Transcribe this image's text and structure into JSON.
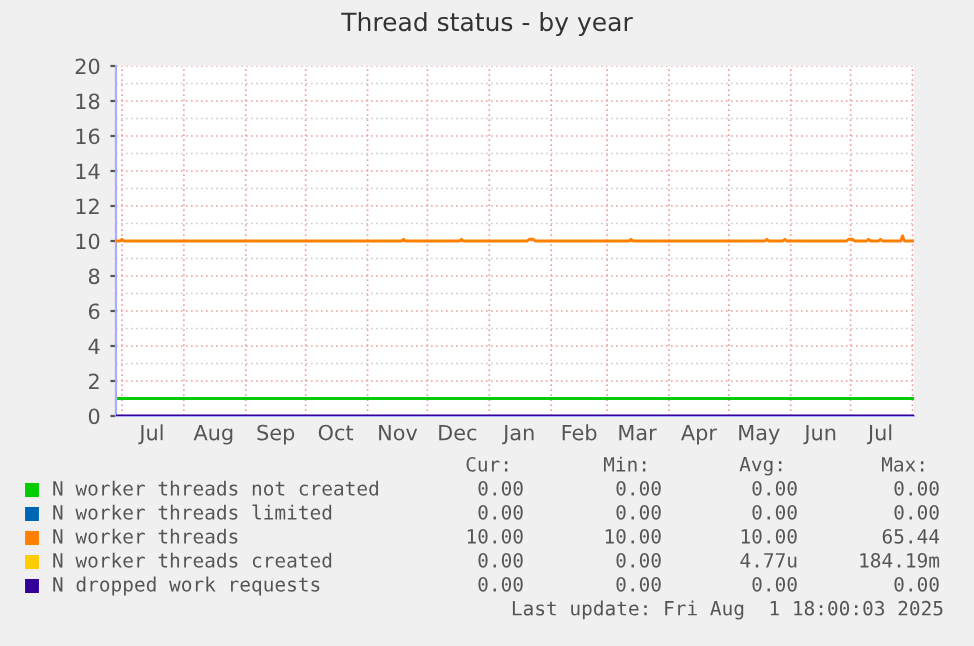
{
  "chart_data": {
    "type": "line",
    "title": "Thread status - by year",
    "xlim": [
      "2024-06-28",
      "2025-08-01T18:00"
    ],
    "xticks": [
      {
        "value": "2024-07-01",
        "label": null
      },
      {
        "value": "2024-07-16",
        "label": "Jul"
      },
      {
        "value": "2024-08-01",
        "label": null
      },
      {
        "value": "2024-08-16",
        "label": "Aug"
      },
      {
        "value": "2024-09-01",
        "label": null
      },
      {
        "value": "2024-09-16",
        "label": "Sep"
      },
      {
        "value": "2024-10-01",
        "label": null
      },
      {
        "value": "2024-10-16",
        "label": "Oct"
      },
      {
        "value": "2024-11-01",
        "label": null
      },
      {
        "value": "2024-11-16",
        "label": "Nov"
      },
      {
        "value": "2024-12-01",
        "label": null
      },
      {
        "value": "2024-12-16",
        "label": "Dec"
      },
      {
        "value": "2025-01-01",
        "label": null
      },
      {
        "value": "2025-01-16",
        "label": "Jan"
      },
      {
        "value": "2025-02-01",
        "label": null
      },
      {
        "value": "2025-02-15",
        "label": "Feb"
      },
      {
        "value": "2025-03-01",
        "label": null
      },
      {
        "value": "2025-03-16",
        "label": "Mar"
      },
      {
        "value": "2025-04-01",
        "label": null
      },
      {
        "value": "2025-04-16",
        "label": "Apr"
      },
      {
        "value": "2025-05-01",
        "label": null
      },
      {
        "value": "2025-05-16",
        "label": "May"
      },
      {
        "value": "2025-06-01",
        "label": null
      },
      {
        "value": "2025-06-16",
        "label": "Jun"
      },
      {
        "value": "2025-07-01",
        "label": null
      },
      {
        "value": "2025-07-16",
        "label": "Jul"
      },
      {
        "value": "2025-08-01",
        "label": null
      }
    ],
    "ylim": [
      0,
      20
    ],
    "yticks": [
      0,
      2,
      4,
      6,
      8,
      10,
      12,
      14,
      16,
      18,
      20
    ],
    "grid": true,
    "legend": "bottom",
    "series": [
      {
        "name": "N worker threads not created",
        "color": "#00cc00"
      },
      {
        "name": "N worker threads limited",
        "color": "#0066b3"
      },
      {
        "name": "N worker threads",
        "color": "#ff8000",
        "x": [
          "2024-06-28",
          "2024-06-30",
          "2024-07-01",
          "2024-07-02",
          "2024-11-18",
          "2024-11-19",
          "2024-11-20",
          "2024-12-17",
          "2024-12-18",
          "2024-12-19",
          "2025-01-20",
          "2025-01-21",
          "2025-01-23",
          "2025-01-24",
          "2025-03-12",
          "2025-03-13",
          "2025-03-14",
          "2025-05-19",
          "2025-05-20",
          "2025-05-21",
          "2025-05-28",
          "2025-05-29",
          "2025-05-30",
          "2025-06-29",
          "2025-06-30",
          "2025-07-02",
          "2025-07-03",
          "2025-07-09",
          "2025-07-10",
          "2025-07-11",
          "2025-07-15",
          "2025-07-16",
          "2025-07-17",
          "2025-07-26",
          "2025-07-27",
          "2025-07-28",
          "2025-08-01T18:00"
        ],
        "values": [
          10,
          10,
          10.1,
          10,
          10,
          10.1,
          10,
          10,
          10.1,
          10,
          10,
          10.1,
          10.1,
          10,
          10,
          10.1,
          10,
          10,
          10.1,
          10,
          10,
          10.1,
          10,
          10,
          10.1,
          10.1,
          10,
          10,
          10.1,
          10,
          10,
          10.1,
          10,
          10,
          10.3,
          10,
          10
        ]
      },
      {
        "name": "N worker threads created",
        "color": "#ffcc00"
      },
      {
        "name": "N dropped work requests",
        "color": "#330099",
        "x": [
          "2024-06-28",
          "2025-08-01T18:00"
        ],
        "values": [
          0,
          0
        ]
      }
    ],
    "ref_lines": [
      {
        "axis": "y",
        "value": 1,
        "color": "#00cc00"
      }
    ],
    "annotations": [
      "Cur:",
      "Min:",
      "Avg:",
      "Max:",
      "0.00",
      "0.00",
      "0.00",
      "0.00",
      "0.00",
      "0.00",
      "0.00",
      "0.00",
      "10.00",
      "10.00",
      "10.00",
      "65.44",
      "0.00",
      "0.00",
      "4.77u",
      "184.19m",
      "0.00",
      "0.00",
      "0.00",
      "0.00",
      "Last update: Fri Aug  1 18:00:03 2025"
    ]
  }
}
